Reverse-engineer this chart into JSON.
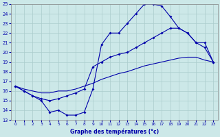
{
  "title": "Graphe des températures (°c)",
  "bg_color": "#cce8e8",
  "grid_color": "#aacccc",
  "line_color": "#0000aa",
  "xlim": [
    -0.5,
    23.5
  ],
  "ylim": [
    13,
    25
  ],
  "xticks": [
    0,
    1,
    2,
    3,
    4,
    5,
    6,
    7,
    8,
    9,
    10,
    11,
    12,
    13,
    14,
    15,
    16,
    17,
    18,
    19,
    20,
    21,
    22,
    23
  ],
  "yticks": [
    13,
    14,
    15,
    16,
    17,
    18,
    19,
    20,
    21,
    22,
    23,
    24,
    25
  ],
  "hours": [
    0,
    1,
    2,
    3,
    4,
    5,
    6,
    7,
    8,
    9,
    10,
    11,
    12,
    13,
    14,
    15,
    16,
    17,
    18,
    19,
    20,
    21,
    22,
    23
  ],
  "line1": [
    16.5,
    16.0,
    15.5,
    15.0,
    13.8,
    14.0,
    13.5,
    13.5,
    13.8,
    16.2,
    20.8,
    22.0,
    22.0,
    23.0,
    24.0,
    25.0,
    25.0,
    24.8,
    23.7,
    22.5,
    22.0,
    21.0,
    21.0,
    19.0
  ],
  "line2": [
    16.5,
    16.2,
    16.0,
    15.8,
    15.8,
    16.0,
    16.0,
    16.2,
    16.5,
    16.8,
    17.2,
    17.5,
    17.8,
    18.0,
    18.3,
    18.6,
    18.8,
    19.0,
    19.2,
    19.4,
    19.5,
    19.5,
    19.2,
    19.0
  ],
  "line3": [
    16.5,
    16.0,
    15.5,
    15.2,
    15.0,
    15.2,
    15.5,
    15.8,
    16.2,
    18.5,
    19.0,
    19.5,
    19.8,
    20.0,
    20.5,
    21.0,
    21.5,
    22.0,
    22.5,
    22.5,
    22.0,
    21.0,
    20.5,
    19.0
  ]
}
